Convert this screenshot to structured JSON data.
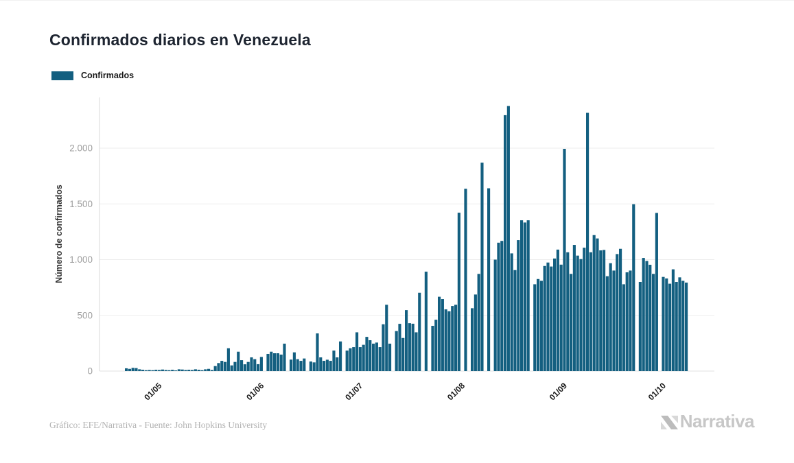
{
  "header": {
    "title": "Confirmados diarios en Venezuela"
  },
  "legend": {
    "items": [
      {
        "label": "Confirmados",
        "color": "#135f80"
      }
    ]
  },
  "footer": {
    "credit": "Gráfico: EFE/Narrativa - Fuente: John Hopkins University",
    "brand": "Narrativa"
  },
  "chart_data": {
    "type": "bar",
    "title": "Confirmados diarios en Venezuela",
    "series_name": "Confirmados",
    "xlabel": "",
    "ylabel": "Número de confirmados",
    "ylim": [
      0,
      2400
    ],
    "grid": true,
    "legend_position": "top-left",
    "bar_color": "#135f80",
    "y_ticks": [
      0,
      500,
      1000,
      1500,
      2000
    ],
    "y_tick_labels": [
      "0",
      "500",
      "1.000",
      "1.500",
      "2.000"
    ],
    "x_tick_labels": [
      "01/05",
      "01/06",
      "01/07",
      "01/08",
      "01/09",
      "01/10"
    ],
    "x_tick_indices": [
      10,
      41,
      71,
      102,
      133,
      163
    ],
    "values": [
      25,
      20,
      29,
      27,
      16,
      12,
      8,
      10,
      8,
      12,
      10,
      14,
      10,
      8,
      12,
      6,
      16,
      14,
      10,
      12,
      10,
      16,
      12,
      8,
      16,
      20,
      10,
      45,
      72,
      92,
      82,
      205,
      51,
      82,
      174,
      98,
      61,
      82,
      123,
      107,
      62,
      127,
      0,
      154,
      174,
      160,
      160,
      148,
      246,
      0,
      103,
      168,
      107,
      92,
      113,
      0,
      86,
      78,
      338,
      123,
      92,
      102,
      92,
      184,
      123,
      266,
      0,
      184,
      205,
      215,
      348,
      215,
      236,
      307,
      277,
      246,
      256,
      215,
      420,
      595,
      246,
      0,
      359,
      424,
      297,
      547,
      430,
      425,
      348,
      703,
      0,
      892,
      0,
      406,
      461,
      667,
      646,
      554,
      537,
      584,
      595,
      1421,
      0,
      1636,
      0,
      564,
      687,
      872,
      1870,
      0,
      1640,
      0,
      1000,
      1152,
      1168,
      2296,
      2378,
      1056,
      906,
      1175,
      1353,
      1333,
      1353,
      0,
      779,
      826,
      810,
      943,
      974,
      938,
      1010,
      1090,
      955,
      1994,
      1066,
      872,
      1132,
      1036,
      1005,
      1107,
      2317,
      1066,
      1220,
      1190,
      1083,
      1087,
      851,
      968,
      902,
      1050,
      1097,
      779,
      886,
      902,
      1497,
      0,
      800,
      1015,
      988,
      954,
      872,
      1419,
      0,
      845,
      831,
      784,
      913,
      800,
      841,
      810,
      794
    ]
  }
}
